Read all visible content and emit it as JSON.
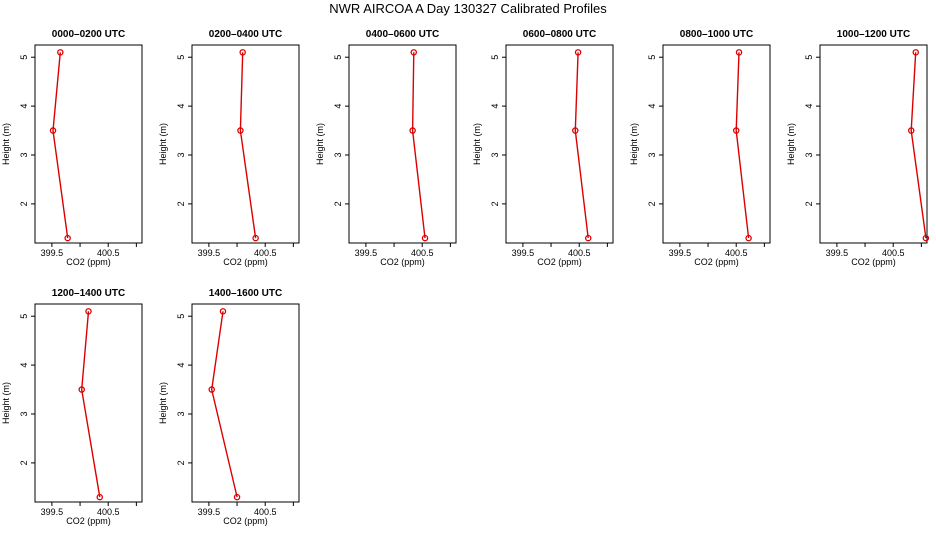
{
  "figure": {
    "title": "NWR AIRCOA A  Day 130327  Calibrated Profiles"
  },
  "chart_data": [
    {
      "type": "line",
      "title": "0000–0200 UTC",
      "xlabel": "CO2 (ppm)",
      "ylabel": "Height (m)",
      "xlim": [
        399.2,
        401.1
      ],
      "ylim": [
        1.2,
        5.25
      ],
      "xticks": [
        399.5,
        400.5
      ],
      "xticks_minor": [
        400,
        401
      ],
      "yticks": [
        2,
        3,
        4,
        5
      ],
      "series": [
        {
          "x": [
            399.65,
            399.52,
            399.78
          ],
          "y": [
            5.1,
            3.5,
            1.3
          ],
          "color": "#dd0000"
        }
      ]
    },
    {
      "type": "line",
      "title": "0200–0400 UTC",
      "xlabel": "CO2 (ppm)",
      "ylabel": "Height (m)",
      "xlim": [
        399.2,
        401.1
      ],
      "ylim": [
        1.2,
        5.25
      ],
      "xticks": [
        399.5,
        400.5
      ],
      "xticks_minor": [
        400,
        401
      ],
      "yticks": [
        2,
        3,
        4,
        5
      ],
      "series": [
        {
          "x": [
            400.1,
            400.06,
            400.33
          ],
          "y": [
            5.1,
            3.5,
            1.3
          ],
          "color": "#dd0000"
        }
      ]
    },
    {
      "type": "line",
      "title": "0400–0600 UTC",
      "xlabel": "CO2 (ppm)",
      "ylabel": "Height (m)",
      "xlim": [
        399.2,
        401.1
      ],
      "ylim": [
        1.2,
        5.25
      ],
      "xticks": [
        399.5,
        400.5
      ],
      "xticks_minor": [
        400,
        401
      ],
      "yticks": [
        2,
        3,
        4,
        5
      ],
      "series": [
        {
          "x": [
            400.35,
            400.33,
            400.55
          ],
          "y": [
            5.1,
            3.5,
            1.3
          ],
          "color": "#dd0000"
        }
      ]
    },
    {
      "type": "line",
      "title": "0600–0800 UTC",
      "xlabel": "CO2 (ppm)",
      "ylabel": "Height (m)",
      "xlim": [
        399.2,
        401.1
      ],
      "ylim": [
        1.2,
        5.25
      ],
      "xticks": [
        399.5,
        400.5
      ],
      "xticks_minor": [
        400,
        401
      ],
      "yticks": [
        2,
        3,
        4,
        5
      ],
      "series": [
        {
          "x": [
            400.48,
            400.43,
            400.66
          ],
          "y": [
            5.1,
            3.5,
            1.3
          ],
          "color": "#dd0000"
        }
      ]
    },
    {
      "type": "line",
      "title": "0800–1000 UTC",
      "xlabel": "CO2 (ppm)",
      "ylabel": "Height (m)",
      "xlim": [
        399.2,
        401.1
      ],
      "ylim": [
        1.2,
        5.25
      ],
      "xticks": [
        399.5,
        400.5
      ],
      "xticks_minor": [
        400,
        401
      ],
      "yticks": [
        2,
        3,
        4,
        5
      ],
      "series": [
        {
          "x": [
            400.55,
            400.5,
            400.72
          ],
          "y": [
            5.1,
            3.5,
            1.3
          ],
          "color": "#dd0000"
        }
      ]
    },
    {
      "type": "line",
      "title": "1000–1200 UTC",
      "xlabel": "CO2 (ppm)",
      "ylabel": "Height (m)",
      "xlim": [
        399.2,
        401.1
      ],
      "ylim": [
        1.2,
        5.25
      ],
      "xticks": [
        399.5,
        400.5
      ],
      "xticks_minor": [
        400,
        401
      ],
      "yticks": [
        2,
        3,
        4,
        5
      ],
      "series": [
        {
          "x": [
            400.9,
            400.82,
            401.08
          ],
          "y": [
            5.1,
            3.5,
            1.3
          ],
          "color": "#dd0000"
        }
      ]
    },
    {
      "type": "line",
      "title": "1200–1400 UTC",
      "xlabel": "CO2 (ppm)",
      "ylabel": "Height (m)",
      "xlim": [
        399.2,
        401.1
      ],
      "ylim": [
        1.2,
        5.25
      ],
      "xticks": [
        399.5,
        400.5
      ],
      "xticks_minor": [
        400,
        401
      ],
      "yticks": [
        2,
        3,
        4,
        5
      ],
      "series": [
        {
          "x": [
            400.15,
            400.03,
            400.35
          ],
          "y": [
            5.1,
            3.5,
            1.3
          ],
          "color": "#dd0000"
        }
      ]
    },
    {
      "type": "line",
      "title": "1400–1600 UTC",
      "xlabel": "CO2 (ppm)",
      "ylabel": "Height (m)",
      "xlim": [
        399.2,
        401.1
      ],
      "ylim": [
        1.2,
        5.25
      ],
      "xticks": [
        399.5,
        400.5
      ],
      "xticks_minor": [
        400,
        401
      ],
      "yticks": [
        2,
        3,
        4,
        5
      ],
      "series": [
        {
          "x": [
            399.75,
            399.55,
            400.0
          ],
          "y": [
            5.1,
            3.5,
            1.3
          ],
          "color": "#dd0000"
        }
      ]
    }
  ]
}
